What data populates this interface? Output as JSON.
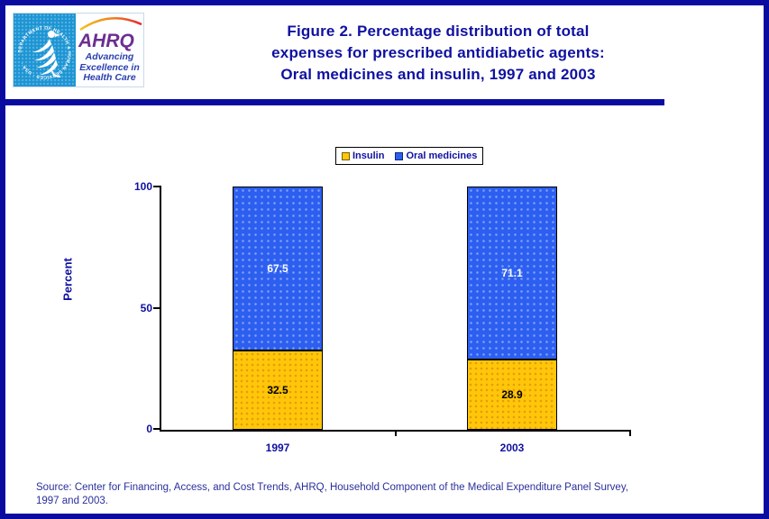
{
  "header": {
    "title": "Figure 2. Percentage distribution of total\nexpenses for prescribed antidiabetic agents:\nOral medicines and insulin, 1997 and 2003",
    "logo": {
      "acronym": "AHRQ",
      "tagline": "Advancing\nExcellence in\nHealth Care",
      "hhs_ring_text": "DEPARTMENT OF HEALTH & HUMAN SERVICES · USA ·"
    }
  },
  "chart_data": {
    "type": "bar",
    "stacked": true,
    "title": "Figure 2. Percentage distribution of total expenses for prescribed antidiabetic agents: Oral medicines and insulin, 1997 and 2003",
    "categories": [
      "1997",
      "2003"
    ],
    "series": [
      {
        "name": "Insulin",
        "values": [
          32.5,
          28.9
        ],
        "color": "#FFC60A"
      },
      {
        "name": "Oral medicines",
        "values": [
          67.5,
          71.1
        ],
        "color": "#2C5FF0"
      }
    ],
    "ylabel": "Percent",
    "xlabel": "",
    "ylim": [
      0,
      100
    ],
    "yticks": [
      0,
      50,
      100
    ],
    "legend_position": "top-center",
    "grid": false,
    "value_labels": true
  },
  "footer": {
    "source": "Source: Center for Financing, Access, and Cost Trends, AHRQ, Household Component of the Medical Expenditure Panel Survey,\n1997 and 2003."
  },
  "colors": {
    "accent_navy": "#0F11A0",
    "border_navy": "#0A0CA0",
    "insulin_yellow": "#FFC60A",
    "oral_blue": "#2C5FF0",
    "hhs_blue": "#1D95D4",
    "ahrq_purple": "#6B2E91"
  }
}
